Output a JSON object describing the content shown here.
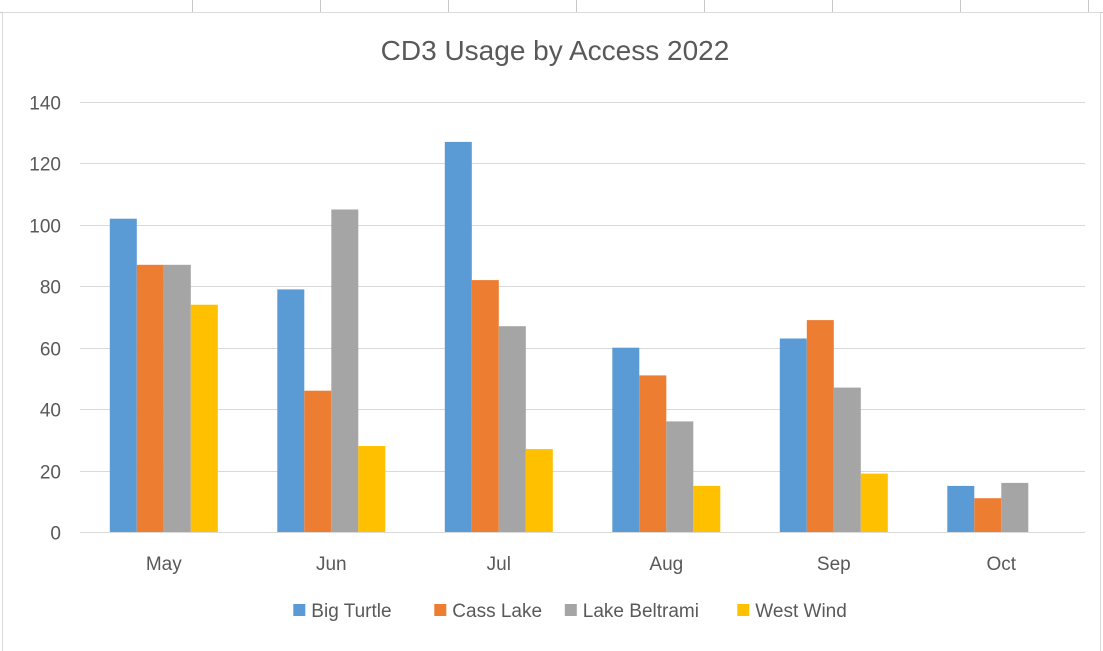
{
  "chart_data": {
    "type": "bar",
    "title": "CD3 Usage by Access 2022",
    "xlabel": "",
    "ylabel": "",
    "categories": [
      "May",
      "Jun",
      "Jul",
      "Aug",
      "Sep",
      "Oct"
    ],
    "ylim": [
      0,
      140
    ],
    "yticks": [
      "0",
      "20",
      "40",
      "60",
      "80",
      "100",
      "120",
      "140"
    ],
    "grid": true,
    "legend_position": "bottom",
    "series": [
      {
        "name": "Big Turtle",
        "color": "#5B9BD5",
        "values": [
          102,
          79,
          127,
          60,
          63,
          15
        ]
      },
      {
        "name": "Cass Lake",
        "color": "#ED7D31",
        "values": [
          87,
          46,
          82,
          51,
          69,
          11
        ]
      },
      {
        "name": "Lake Beltrami",
        "color": "#A5A5A5",
        "values": [
          87,
          105,
          67,
          36,
          47,
          16
        ]
      },
      {
        "name": "West Wind",
        "color": "#FFC000",
        "values": [
          74,
          28,
          27,
          15,
          19,
          0
        ]
      }
    ]
  }
}
